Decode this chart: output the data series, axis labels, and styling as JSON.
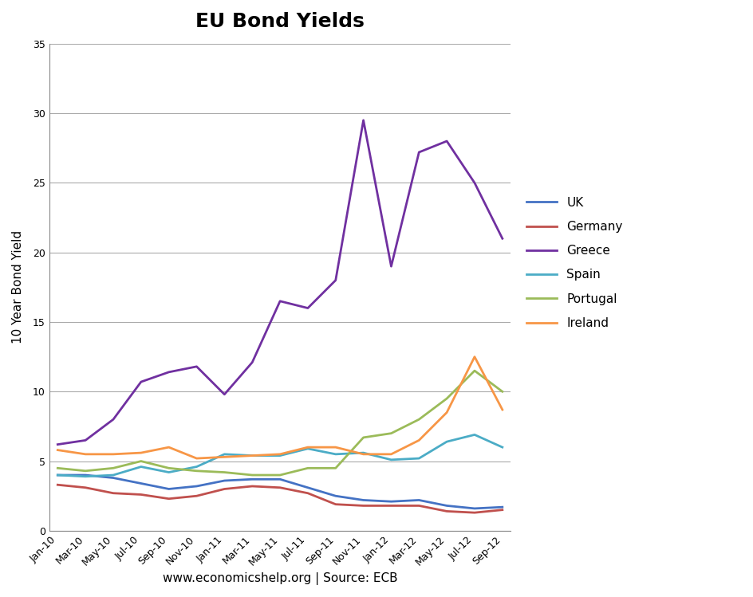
{
  "title": "EU Bond Yields",
  "ylabel": "10 Year Bond Yield",
  "xlabel": "www.economicshelp.org | Source: ECB",
  "x_labels": [
    "Jan-10",
    "Mar-10",
    "May-10",
    "Jul-10",
    "Sep-10",
    "Nov-10",
    "Jan-11",
    "Mar-11",
    "May-11",
    "Jul-11",
    "Sep-11",
    "Nov-11",
    "Jan-12",
    "Mar-12",
    "May-12",
    "Jul-12",
    "Sep-12"
  ],
  "ylim": [
    0,
    35
  ],
  "yticks": [
    0,
    5,
    10,
    15,
    20,
    25,
    30,
    35
  ],
  "series": {
    "UK": {
      "color": "#4472C4",
      "values": [
        4.0,
        4.0,
        3.8,
        3.4,
        3.0,
        3.2,
        3.6,
        3.7,
        3.7,
        3.1,
        2.5,
        2.2,
        2.1,
        2.2,
        1.8,
        1.6,
        1.7
      ]
    },
    "Germany": {
      "color": "#C0504D",
      "values": [
        3.3,
        3.1,
        2.7,
        2.6,
        2.3,
        2.5,
        3.0,
        3.2,
        3.1,
        2.7,
        1.9,
        1.8,
        1.8,
        1.8,
        1.4,
        1.3,
        1.5
      ]
    },
    "Greece": {
      "color": "#7030A0",
      "values": [
        6.2,
        6.5,
        8.0,
        10.7,
        11.4,
        11.8,
        9.8,
        12.1,
        16.5,
        16.0,
        18.0,
        29.5,
        19.0,
        27.2,
        28.0,
        25.0,
        21.0
      ]
    },
    "Spain": {
      "color": "#4BACC6",
      "values": [
        4.0,
        3.9,
        4.0,
        4.6,
        4.2,
        4.6,
        5.5,
        5.4,
        5.4,
        5.9,
        5.5,
        5.6,
        5.1,
        5.2,
        6.4,
        6.9,
        6.0
      ]
    },
    "Portugal": {
      "color": "#9BBB59",
      "values": [
        4.5,
        4.3,
        4.5,
        5.0,
        4.5,
        4.3,
        4.2,
        4.0,
        4.0,
        4.5,
        4.5,
        6.7,
        7.0,
        8.0,
        9.5,
        11.5,
        10.0
      ]
    },
    "Ireland": {
      "color": "#F79646",
      "values": [
        5.8,
        5.5,
        5.5,
        5.6,
        6.0,
        5.2,
        5.3,
        5.4,
        5.5,
        6.0,
        6.0,
        5.5,
        5.5,
        6.5,
        8.5,
        12.5,
        8.7
      ]
    }
  },
  "background_color": "#FFFFFF",
  "grid_color": "#AAAAAA",
  "title_fontsize": 18,
  "axis_fontsize": 11,
  "tick_fontsize": 9,
  "legend_fontsize": 11,
  "line_width": 2.0
}
